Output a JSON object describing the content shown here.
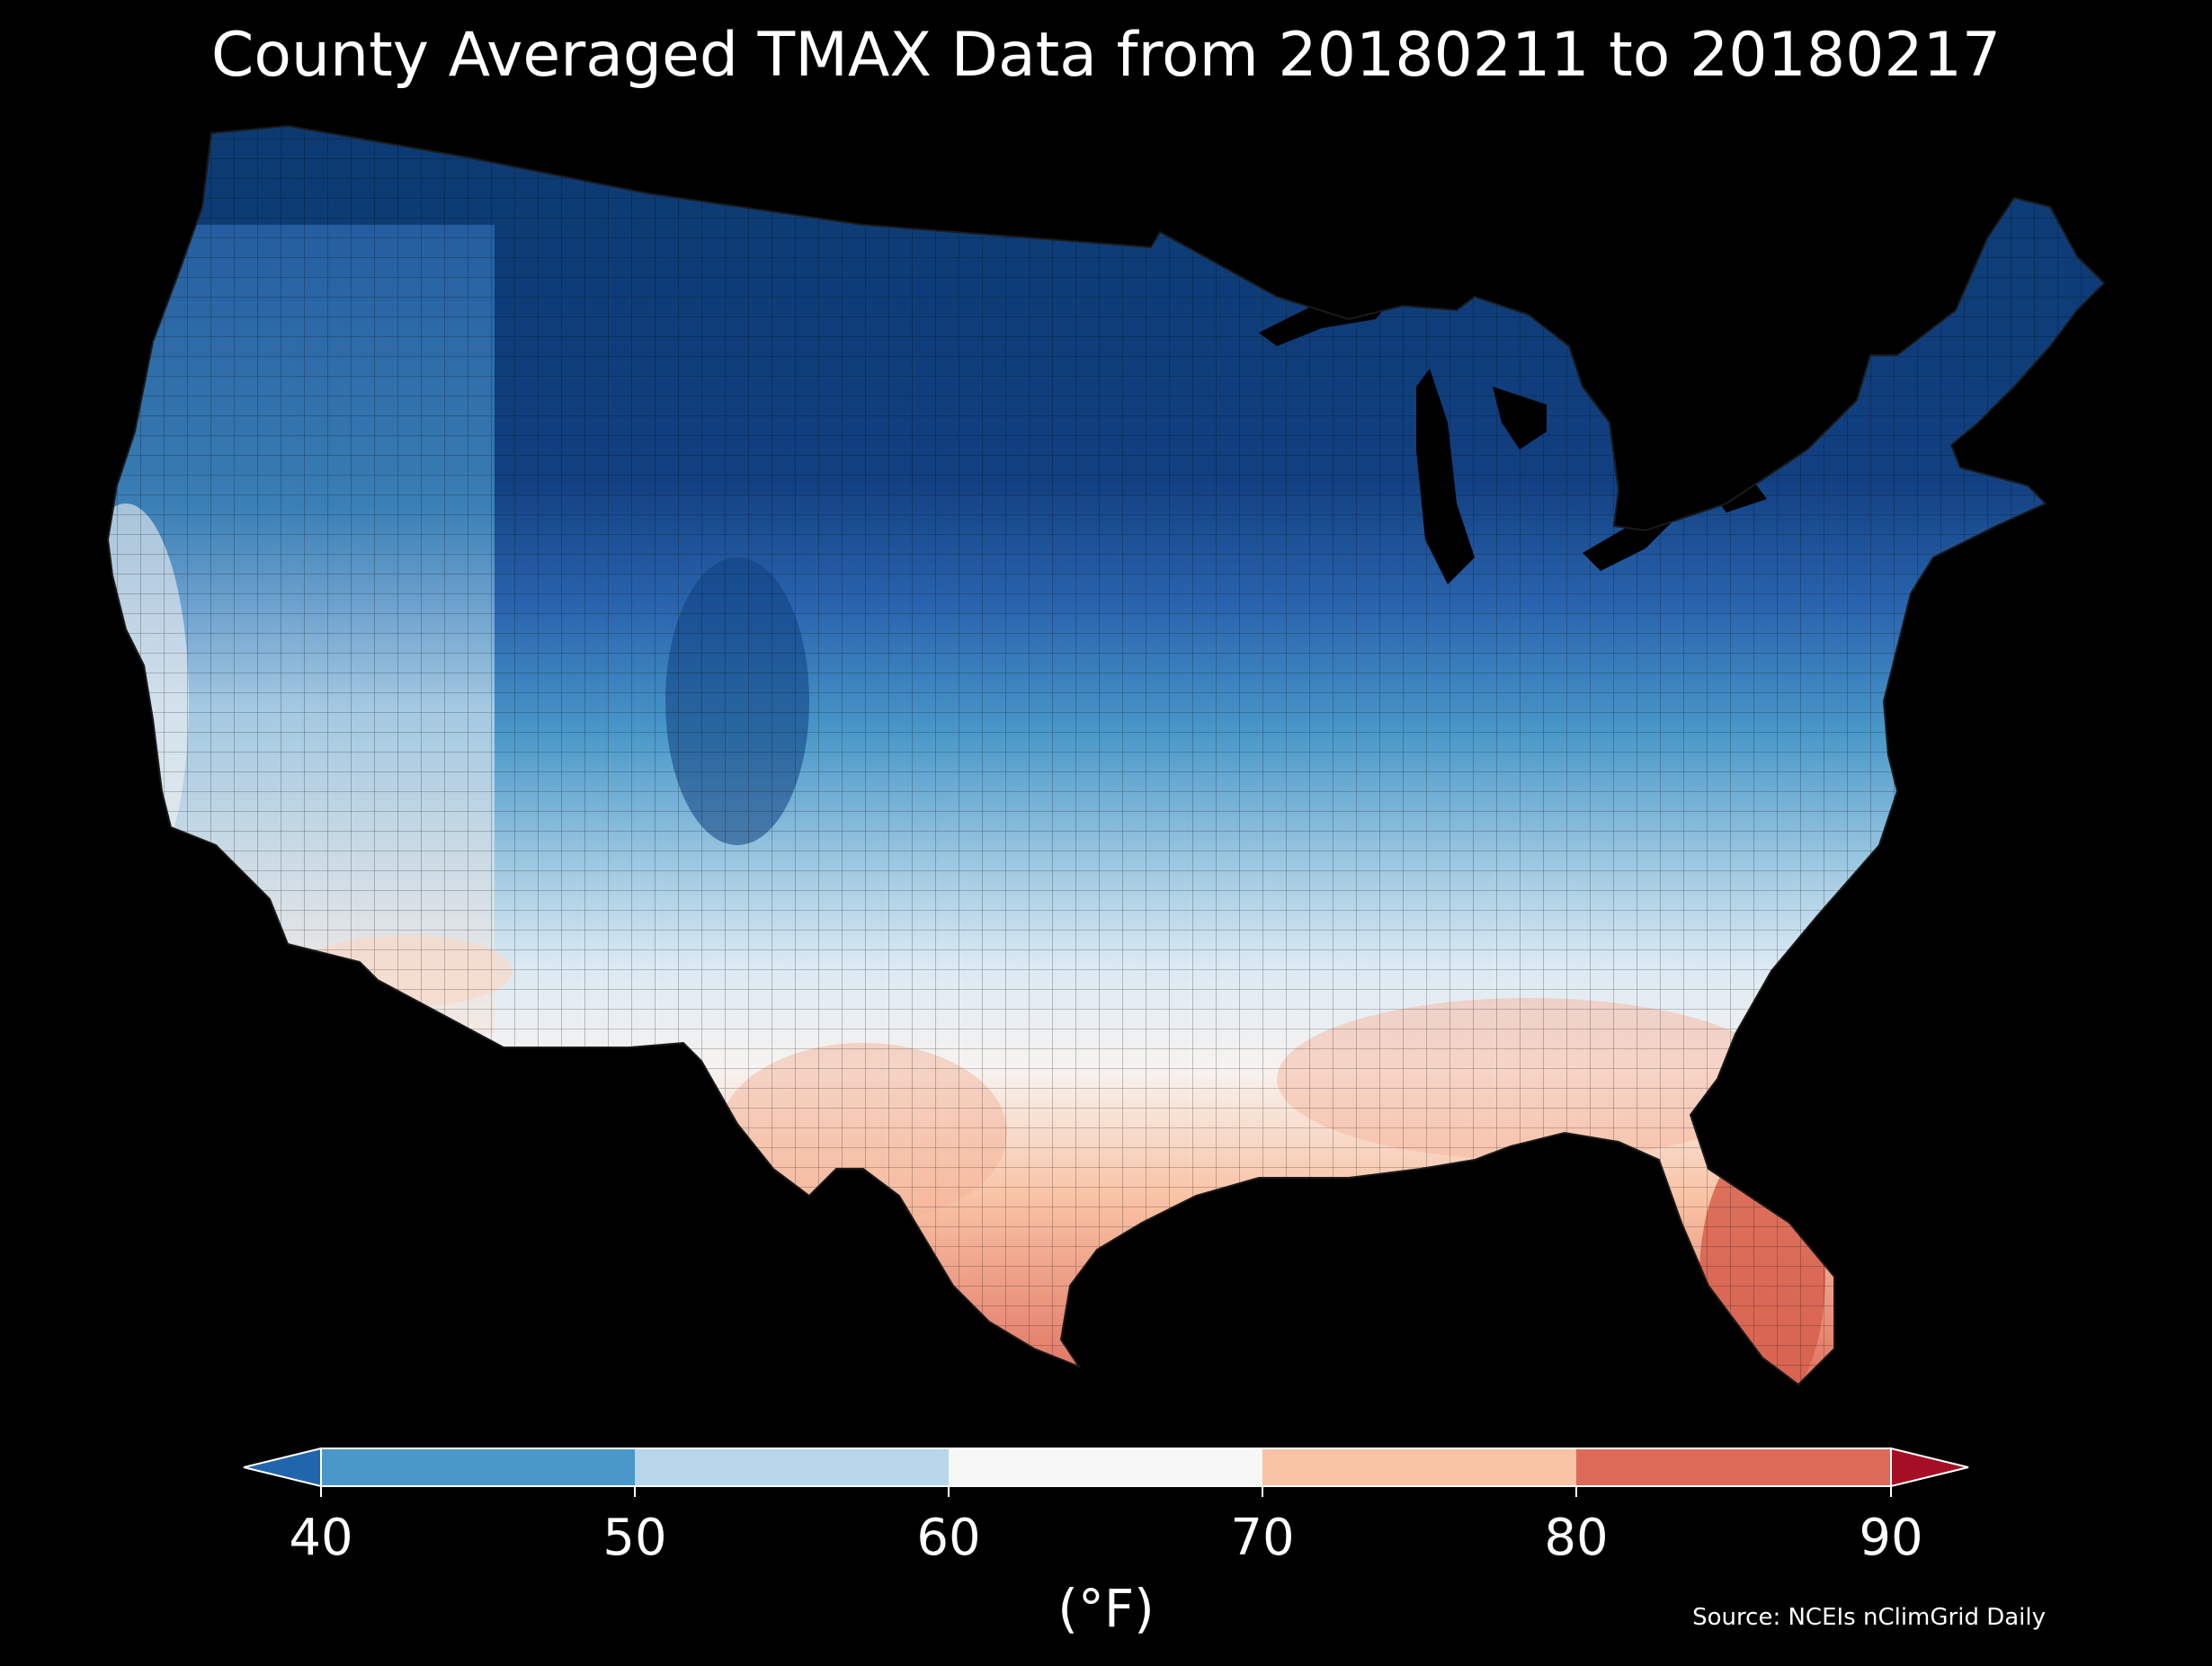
{
  "title": "County Averaged TMAX Data from 20180211 to 20180217",
  "map": {
    "region": "contiguous-united-states",
    "background_color": "#000000",
    "county_line_color": "#000000",
    "fill_by_temperature_gradient": true
  },
  "colorbar": {
    "ticks": [
      "40",
      "50",
      "60",
      "70",
      "80",
      "90"
    ],
    "colors": [
      "#4a98c9",
      "#b7d6ea",
      "#f7f7f7",
      "#f9c3a6",
      "#dd6a59"
    ],
    "under_color": "#2166ac",
    "over_color": "#a50f26",
    "units": "(°F)"
  },
  "source": "Source: NCEIs nClimGrid Daily"
}
